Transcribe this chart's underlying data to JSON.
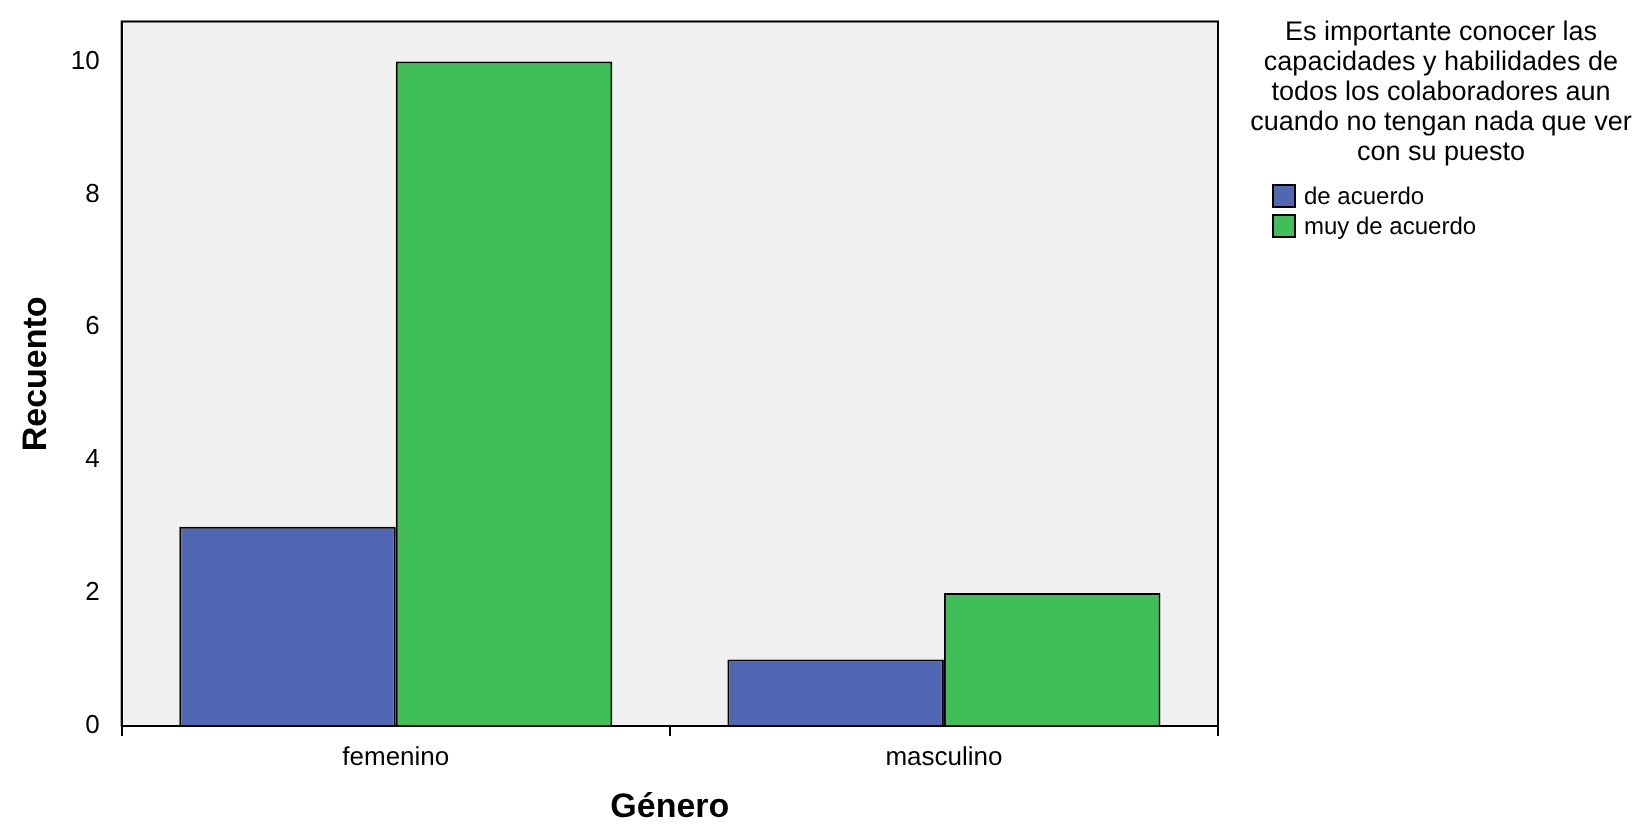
{
  "chart_data": {
    "type": "bar",
    "xlabel": "Género",
    "ylabel": "Recuento",
    "legend_title": "Es importante conocer las capacidades y habilidades de todos los colaboradores aun cuando no tengan nada que ver con su puesto",
    "categories": [
      "femenino",
      "masculino"
    ],
    "series": [
      {
        "name": "de acuerdo",
        "color": "#5068b4",
        "values": [
          3,
          1
        ]
      },
      {
        "name": "muy de acuerdo",
        "color": "#40be58",
        "values": [
          10,
          2
        ]
      }
    ],
    "ylim": [
      0,
      10.6
    ],
    "yticks": [
      0,
      2,
      4,
      6,
      8,
      10
    ],
    "grid": false,
    "legend": "top right"
  }
}
